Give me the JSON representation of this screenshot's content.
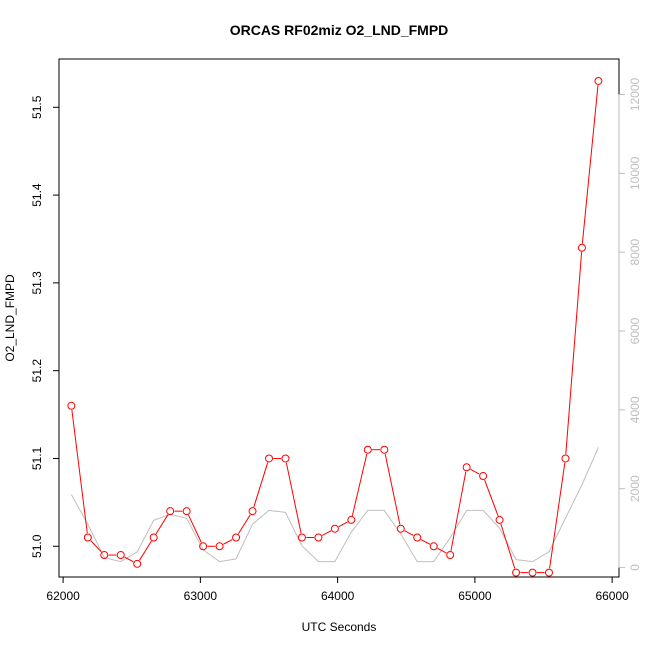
{
  "chart_data": {
    "type": "line",
    "title": "ORCAS RF02miz O2_LND_FMPD",
    "xlabel": "UTC Seconds",
    "ylabel": "O2_LND_FMPD",
    "xlim": [
      61970,
      66050
    ],
    "ylim": [
      50.965,
      51.555
    ],
    "y2lim": [
      -240,
      12900
    ],
    "x_ticks": [
      62000,
      63000,
      64000,
      65000,
      66000
    ],
    "x_tick_labels": [
      "62000",
      "63000",
      "64000",
      "65000",
      "66000"
    ],
    "y_ticks": [
      51.0,
      51.1,
      51.2,
      51.3,
      51.4,
      51.5
    ],
    "y_tick_labels": [
      "51.0",
      "51.1",
      "51.2",
      "51.3",
      "51.4",
      "51.5"
    ],
    "y2_ticks": [
      0,
      2000,
      4000,
      6000,
      8000,
      10000,
      12000
    ],
    "y2_tick_labels": [
      "0",
      "2000",
      "4000",
      "6000",
      "8000",
      "10000",
      "12000"
    ],
    "grid": false,
    "legend": "none",
    "series": [
      {
        "axis": "left",
        "color": "#ff0000",
        "style": "line+open-circles",
        "x": [
          62060,
          62180,
          62300,
          62420,
          62540,
          62660,
          62780,
          62900,
          63020,
          63140,
          63260,
          63380,
          63500,
          63620,
          63740,
          63860,
          63980,
          64100,
          64220,
          64340,
          64460,
          64580,
          64700,
          64820,
          64940,
          65060,
          65180,
          65300,
          65420,
          65540,
          65660,
          65780,
          65900
        ],
        "y": [
          51.16,
          51.01,
          50.99,
          50.99,
          50.98,
          51.01,
          51.04,
          51.04,
          51.0,
          51.0,
          51.01,
          51.04,
          51.1,
          51.1,
          51.01,
          51.01,
          51.02,
          51.03,
          51.11,
          51.11,
          51.02,
          51.01,
          51.0,
          50.99,
          51.09,
          51.08,
          51.03,
          50.97,
          50.97,
          50.97,
          51.1,
          51.34,
          51.53
        ]
      },
      {
        "axis": "right",
        "color": "#bebebe",
        "style": "line",
        "x": [
          62060,
          62180,
          62300,
          62420,
          62540,
          62660,
          62780,
          62900,
          63020,
          63140,
          63260,
          63380,
          63500,
          63620,
          63740,
          63860,
          63980,
          64100,
          64220,
          64340,
          64460,
          64580,
          64700,
          64820,
          64940,
          65060,
          65180,
          65300,
          65420,
          65540,
          65660,
          65780,
          65900
        ],
        "y": [
          1850,
          1100,
          250,
          150,
          400,
          1200,
          1350,
          1250,
          450,
          150,
          220,
          1100,
          1450,
          1400,
          550,
          150,
          150,
          900,
          1450,
          1450,
          850,
          150,
          150,
          750,
          1450,
          1450,
          1000,
          200,
          150,
          400,
          1250,
          2100,
          3050
        ]
      }
    ]
  }
}
